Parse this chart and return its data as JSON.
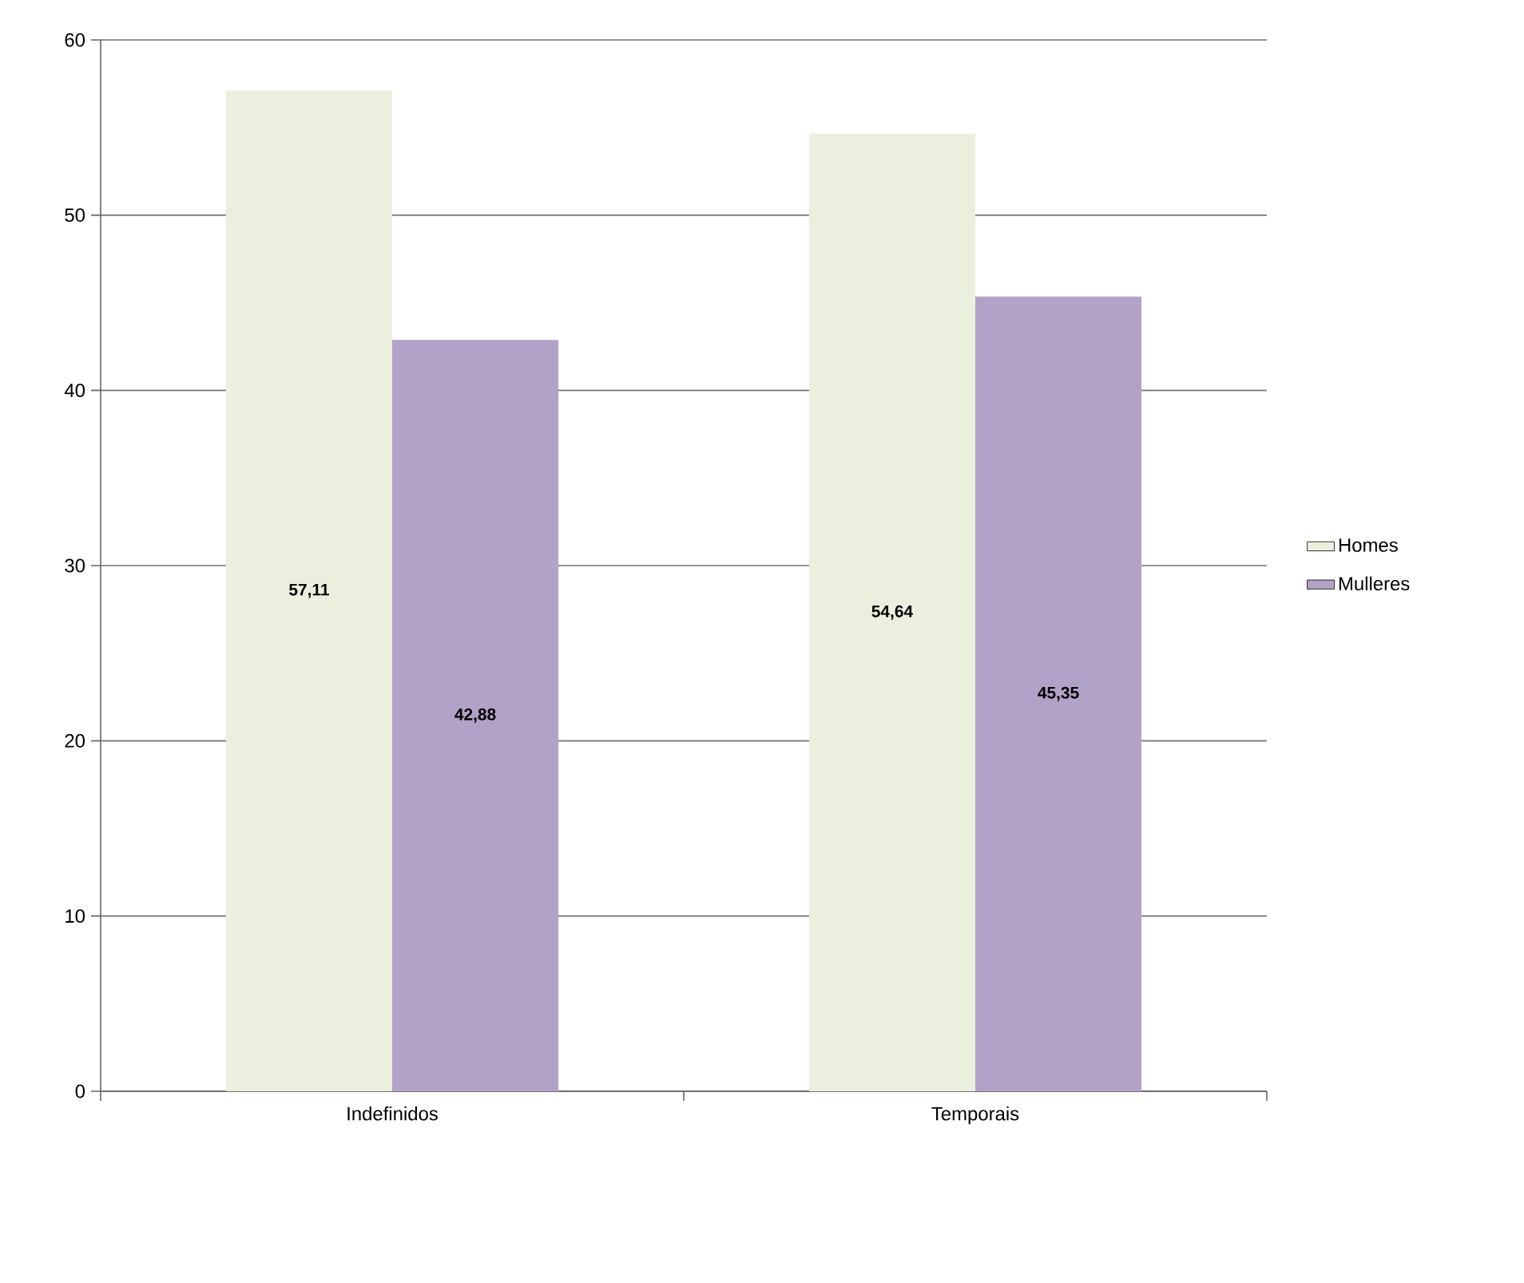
{
  "chart_data": {
    "type": "bar",
    "categories": [
      "Indefinidos",
      "Temporais"
    ],
    "series": [
      {
        "name": "Homes",
        "color": "#ebf0de",
        "values": [
          57.11,
          54.64
        ],
        "value_labels": [
          "57,11",
          "54,64"
        ]
      },
      {
        "name": "Mulleres",
        "color": "#b3a2c7",
        "values": [
          42.88,
          45.35
        ],
        "value_labels": [
          "42,88",
          "45,35"
        ]
      }
    ],
    "ylim": [
      0,
      60
    ],
    "yticks": [
      0,
      10,
      20,
      30,
      40,
      50,
      60
    ],
    "grid": "y",
    "legend": "right"
  }
}
